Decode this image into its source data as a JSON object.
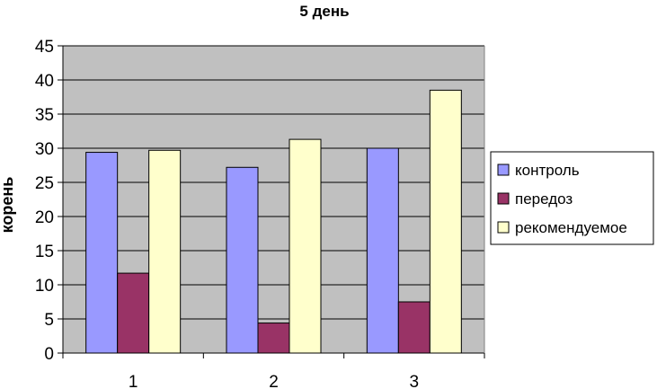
{
  "chart_data": {
    "type": "bar",
    "title": "5 день",
    "xlabel": "",
    "ylabel": "корень",
    "categories": [
      "1",
      "2",
      "3"
    ],
    "series": [
      {
        "name": "контроль",
        "values": [
          29.4,
          27.2,
          30.0
        ],
        "color": "#9999ff"
      },
      {
        "name": "передоз",
        "values": [
          11.7,
          4.4,
          7.5
        ],
        "color": "#993366"
      },
      {
        "name": "рекомендуемое",
        "values": [
          29.7,
          31.3,
          38.5
        ],
        "color": "#ffffcc"
      }
    ],
    "ylim": [
      0,
      45
    ],
    "yticks": [
      "0",
      "5",
      "10",
      "15",
      "20",
      "25",
      "30",
      "35",
      "40",
      "45"
    ],
    "grid": true,
    "plot_background": "#c0c0c0",
    "legend_position": "right"
  }
}
